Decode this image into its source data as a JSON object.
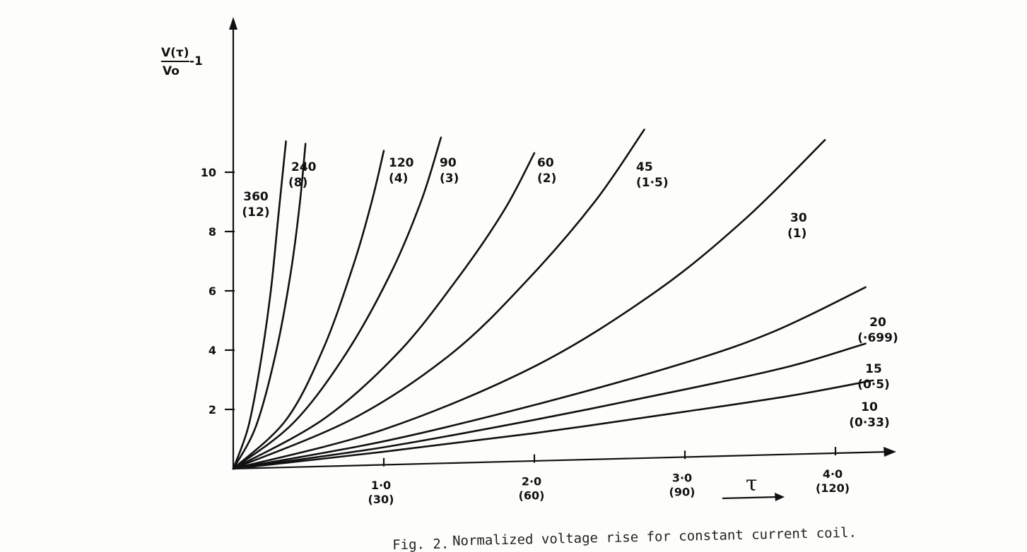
{
  "caption": {
    "fig": "Fig. 2.",
    "text": "Normalized voltage rise for constant current coil."
  },
  "y_axis": {
    "label_numerator": "V(τ)",
    "label_denominator": "Vo",
    "label_suffix": "-1"
  },
  "x_axis": {
    "label": "τ"
  },
  "chart_data": {
    "type": "line",
    "xlim": [
      0,
      4.3
    ],
    "ylim": [
      0,
      11
    ],
    "x_ticks": [
      {
        "value": 1.0,
        "label": "1·0",
        "sub": "(30)"
      },
      {
        "value": 2.0,
        "label": "2·0",
        "sub": "(60)"
      },
      {
        "value": 3.0,
        "label": "3·0",
        "sub": "(90)"
      },
      {
        "value": 4.0,
        "label": "4·0",
        "sub": "(120)"
      }
    ],
    "y_ticks": [
      {
        "value": 2,
        "label": "2"
      },
      {
        "value": 4,
        "label": "4"
      },
      {
        "value": 6,
        "label": "6"
      },
      {
        "value": 8,
        "label": "8"
      },
      {
        "value": 10,
        "label": "10"
      }
    ],
    "series": [
      {
        "name": "360",
        "sub": "(12)",
        "x": [
          0,
          0.1,
          0.18,
          0.25,
          0.3,
          0.35
        ],
        "y": [
          0,
          1.4,
          3.5,
          6.0,
          8.5,
          11.0
        ]
      },
      {
        "name": "240",
        "sub": "(8)",
        "x": [
          0,
          0.15,
          0.28,
          0.38,
          0.44,
          0.48
        ],
        "y": [
          0,
          1.4,
          3.8,
          6.5,
          8.8,
          10.9
        ]
      },
      {
        "name": "120",
        "sub": "(4)",
        "x": [
          0,
          0.35,
          0.6,
          0.8,
          0.92,
          1.0
        ],
        "y": [
          0,
          1.6,
          4.0,
          6.8,
          8.9,
          10.6
        ]
      },
      {
        "name": "90",
        "sub": "(3)",
        "x": [
          0,
          0.4,
          0.75,
          1.05,
          1.25,
          1.38
        ],
        "y": [
          0,
          1.5,
          3.8,
          6.5,
          8.9,
          11.0
        ]
      },
      {
        "name": "60",
        "sub": "(2)",
        "x": [
          0,
          0.6,
          1.1,
          1.5,
          1.8,
          2.0
        ],
        "y": [
          0,
          1.6,
          3.8,
          6.3,
          8.5,
          10.4
        ]
      },
      {
        "name": "45",
        "sub": "(1·5)",
        "x": [
          0,
          0.8,
          1.45,
          1.95,
          2.4,
          2.73
        ],
        "y": [
          0,
          1.6,
          3.7,
          6.1,
          8.7,
          11.1
        ]
      },
      {
        "name": "30",
        "sub": "(1)",
        "x": [
          0,
          1.0,
          2.0,
          2.8,
          3.4,
          3.93
        ],
        "y": [
          0,
          1.2,
          3.2,
          5.6,
          8.0,
          10.6
        ]
      },
      {
        "name": "20",
        "sub": "(·699)",
        "x": [
          0,
          1.0,
          2.0,
          3.0,
          3.6,
          4.2
        ],
        "y": [
          0,
          0.8,
          1.9,
          3.2,
          4.2,
          5.6
        ]
      },
      {
        "name": "15",
        "sub": "(0·5)",
        "x": [
          0,
          1.0,
          2.0,
          3.0,
          3.7,
          4.2
        ],
        "y": [
          0,
          0.6,
          1.4,
          2.3,
          3.0,
          3.7
        ]
      },
      {
        "name": "10",
        "sub": "(0·33)",
        "x": [
          0,
          1.0,
          2.0,
          3.0,
          3.7,
          4.25
        ],
        "y": [
          0,
          0.45,
          0.95,
          1.55,
          2.0,
          2.45
        ]
      }
    ]
  }
}
